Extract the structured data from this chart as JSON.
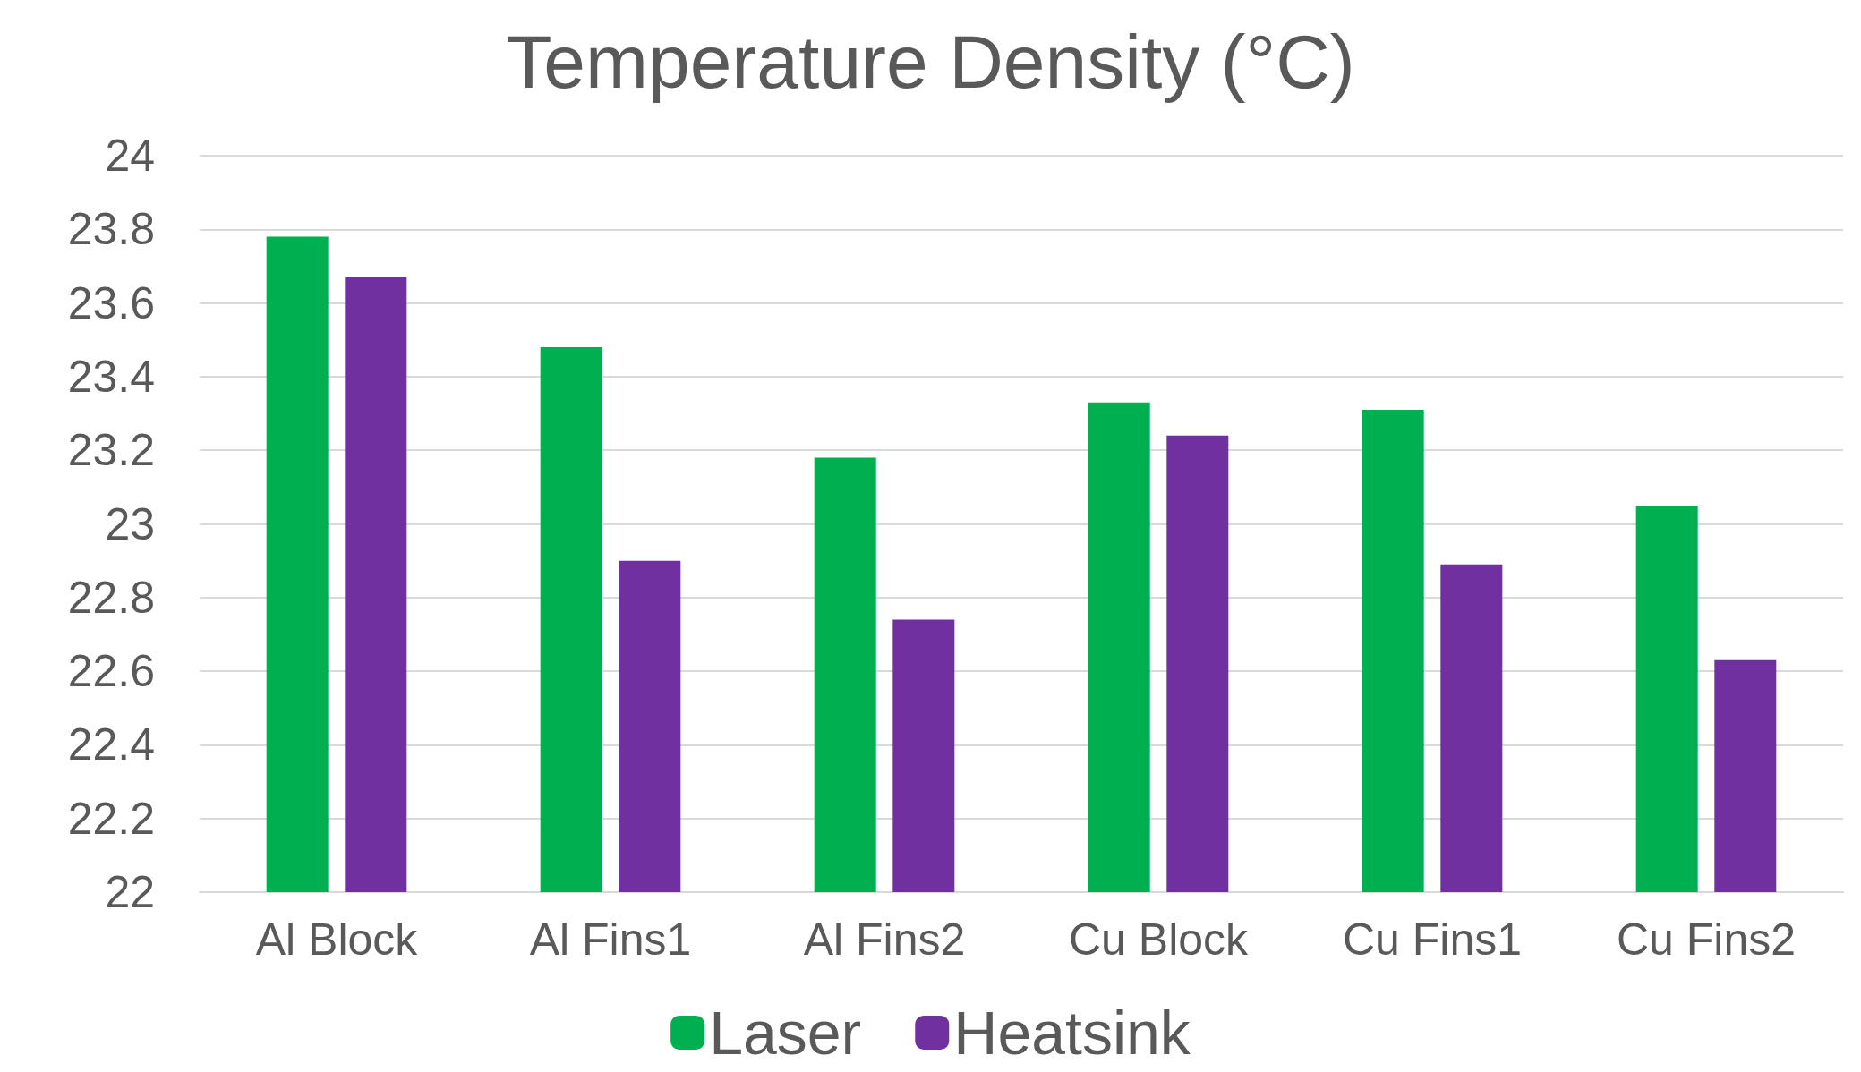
{
  "chart_data": {
    "type": "bar",
    "title": "Temperature Density (°C)",
    "categories": [
      "Al Block",
      "Al Fins1",
      "Al Fins2",
      "Cu Block",
      "Cu Fins1",
      "Cu Fins2"
    ],
    "series": [
      {
        "name": "Laser",
        "color": "#00b050",
        "values": [
          23.78,
          23.48,
          23.18,
          23.33,
          23.31,
          23.05
        ]
      },
      {
        "name": "Heatsink",
        "color": "#7030a0",
        "values": [
          23.67,
          22.9,
          22.74,
          23.24,
          22.89,
          22.63
        ]
      }
    ],
    "ylim": [
      22,
      24
    ],
    "yticks": [
      22,
      22.2,
      22.4,
      22.6,
      22.8,
      23,
      23.2,
      23.4,
      23.6,
      23.8,
      24
    ],
    "grid": "y",
    "legend": "bottom"
  }
}
